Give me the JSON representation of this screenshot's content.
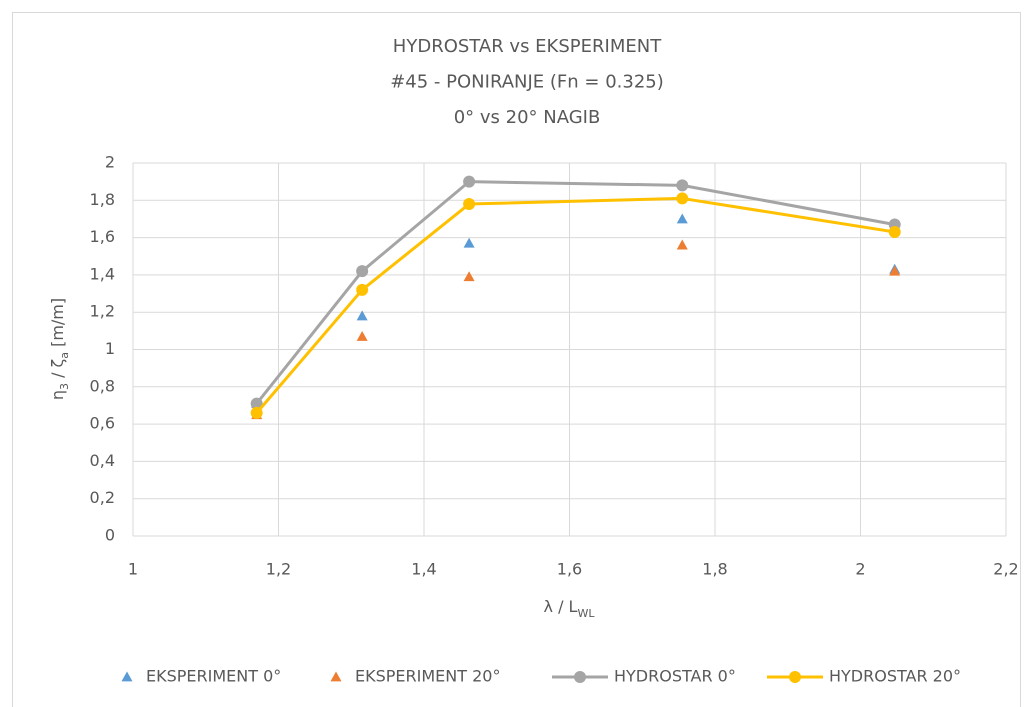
{
  "chart_data": {
    "type": "scatter",
    "title": [
      "HYDROSTAR vs EKSPERIMENT",
      "#45 - PONIRANJE (Fn = 0.325)",
      "0° vs 20°  NAGIB"
    ],
    "xlabel": [
      "λ / L",
      "WL"
    ],
    "ylabel": [
      "η",
      "3",
      " / ζ",
      "a",
      "     [m/m]"
    ],
    "x": [
      1.17,
      1.315,
      1.462,
      1.755,
      2.047
    ],
    "series": [
      {
        "name": "EKSPERIMENT 0°",
        "color": "#5b9bd5",
        "marker": "triangle",
        "line": false,
        "values": [
          0.71,
          1.18,
          1.57,
          1.7,
          1.43
        ]
      },
      {
        "name": "EKSPERIMENT 20°",
        "color": "#ed7d31",
        "marker": "triangle",
        "line": false,
        "values": [
          0.65,
          1.07,
          1.39,
          1.56,
          1.42
        ]
      },
      {
        "name": "HYDROSTAR 0°",
        "color": "#a5a5a5",
        "marker": "circle",
        "line": true,
        "values": [
          0.71,
          1.42,
          1.9,
          1.88,
          1.67
        ]
      },
      {
        "name": "HYDROSTAR 20°",
        "color": "#ffc000",
        "marker": "circle",
        "line": true,
        "values": [
          0.66,
          1.32,
          1.78,
          1.81,
          1.63
        ]
      }
    ],
    "xlim": [
      1,
      2.2
    ],
    "xticks": [
      1,
      {
        "value": 1.2,
        "label": "1,2"
      },
      {
        "value": 1.4,
        "label": "1,4"
      },
      {
        "value": 1.6,
        "label": "1,6"
      },
      {
        "value": 1.8,
        "label": "1,8"
      },
      2,
      {
        "value": 2.2,
        "label": "2,2"
      }
    ],
    "ylim": [
      0,
      2
    ],
    "yticks": [
      0,
      {
        "value": 0.2,
        "label": "0,2"
      },
      {
        "value": 0.4,
        "label": "0,4"
      },
      {
        "value": 0.6,
        "label": "0,6"
      },
      {
        "value": 0.8,
        "label": "0,8"
      },
      1,
      {
        "value": 1.2,
        "label": "1,2"
      },
      {
        "value": 1.4,
        "label": "1,4"
      },
      {
        "value": 1.6,
        "label": "1,6"
      },
      {
        "value": 1.8,
        "label": "1,8"
      },
      2
    ],
    "grid": true,
    "legend": "bottom"
  }
}
